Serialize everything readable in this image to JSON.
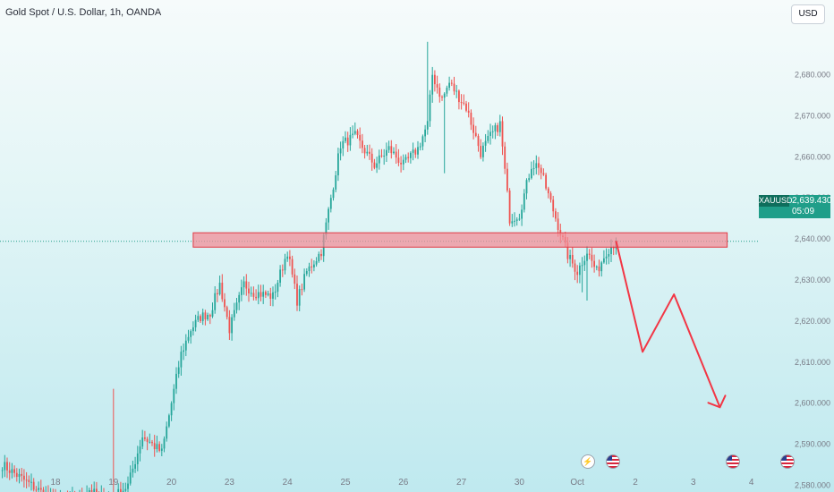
{
  "header": {
    "title": "Gold Spot / U.S. Dollar, 1h, OANDA",
    "currency_button": "USD"
  },
  "price_badge": {
    "symbol": "XAUUSD",
    "price": "2,639.430",
    "countdown": "05:09"
  },
  "events": {
    "bolt_icon": "lightning-icon",
    "flag_icon": "us-flag-icon"
  },
  "colors": {
    "up": "#26a69a",
    "down": "#ef5350",
    "zone_fill": "#f28b95",
    "zone_border": "#e23a45",
    "arrow": "#f23645",
    "axis_text": "#787b86",
    "price_line": "#1f9e89"
  },
  "chart_data": {
    "type": "candlestick",
    "symbol": "XAUUSD",
    "timeframe": "1h",
    "y_axis": {
      "ticks": [
        2580,
        2590,
        2600,
        2610,
        2620,
        2630,
        2640,
        2650,
        2660,
        2670,
        2680
      ],
      "tick_labels": [
        "2,580.000",
        "2,590.000",
        "2,600.000",
        "2,610.000",
        "2,620.000",
        "2,630.000",
        "2,640.000",
        "2,650.000",
        "2,660.000",
        "2,670.000",
        "2,680.000"
      ],
      "range": [
        2575,
        2689
      ]
    },
    "x_axis": {
      "tick_labels": [
        "18",
        "19",
        "20",
        "23",
        "24",
        "25",
        "26",
        "27",
        "30",
        "Oct",
        "2",
        "3",
        "4"
      ],
      "tick_index": [
        0,
        24,
        48,
        72,
        96,
        120,
        144,
        168,
        192,
        216,
        240,
        264,
        288
      ]
    },
    "last_price": 2639.43,
    "resistance_zone": {
      "low": 2638,
      "high": 2641.5,
      "start_index": 57,
      "end_index": 278
    },
    "projection_path": [
      {
        "index": 232,
        "price": 2639.5
      },
      {
        "index": 243,
        "price": 2612.5
      },
      {
        "index": 256,
        "price": 2626.5
      },
      {
        "index": 275,
        "price": 2599
      }
    ],
    "pivots": [
      [
        -22,
        2585
      ],
      [
        -10,
        2580
      ],
      [
        0,
        2576
      ],
      [
        10,
        2577
      ],
      [
        14,
        2579
      ],
      [
        18,
        2577
      ],
      [
        24,
        2577
      ],
      [
        30,
        2580
      ],
      [
        36,
        2592
      ],
      [
        44,
        2588
      ],
      [
        52,
        2612
      ],
      [
        56,
        2618
      ],
      [
        60,
        2621
      ],
      [
        64,
        2622
      ],
      [
        68,
        2629
      ],
      [
        72,
        2618
      ],
      [
        78,
        2629
      ],
      [
        82,
        2627
      ],
      [
        90,
        2626
      ],
      [
        96,
        2637
      ],
      [
        100,
        2625
      ],
      [
        104,
        2632
      ],
      [
        110,
        2637
      ],
      [
        114,
        2650
      ],
      [
        118,
        2663
      ],
      [
        124,
        2665
      ],
      [
        132,
        2658
      ],
      [
        138,
        2662
      ],
      [
        144,
        2658
      ],
      [
        150,
        2662
      ],
      [
        154,
        2668
      ],
      [
        156,
        2680
      ],
      [
        160,
        2674
      ],
      [
        163,
        2678
      ],
      [
        170,
        2672
      ],
      [
        176,
        2661
      ],
      [
        180,
        2665
      ],
      [
        184,
        2668
      ],
      [
        188,
        2645
      ],
      [
        192,
        2646
      ],
      [
        197,
        2658
      ],
      [
        200,
        2658
      ],
      [
        206,
        2647
      ],
      [
        212,
        2636
      ],
      [
        216,
        2632
      ],
      [
        220,
        2637
      ],
      [
        224,
        2632
      ],
      [
        228,
        2637
      ],
      [
        232,
        2639.4
      ]
    ],
    "spikes": [
      {
        "index": 24,
        "high": 2603.5
      },
      {
        "index": 154,
        "high": 2688
      },
      {
        "index": 161,
        "low": 2656
      },
      {
        "index": 218,
        "low": 2627
      },
      {
        "index": 220,
        "low": 2625
      }
    ]
  }
}
